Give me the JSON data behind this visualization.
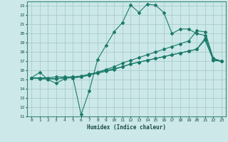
{
  "title": "",
  "xlabel": "Humidex (Indice chaleur)",
  "bg_color": "#cce8e8",
  "grid_color": "#aacccc",
  "line_color": "#1a7a6a",
  "xlim": [
    -0.5,
    23.5
  ],
  "ylim": [
    11,
    23.5
  ],
  "xticks": [
    0,
    1,
    2,
    3,
    4,
    5,
    6,
    7,
    8,
    9,
    10,
    11,
    12,
    13,
    14,
    15,
    16,
    17,
    18,
    19,
    20,
    21,
    22,
    23
  ],
  "yticks": [
    11,
    12,
    13,
    14,
    15,
    16,
    17,
    18,
    19,
    20,
    21,
    22,
    23
  ],
  "series": [
    [
      15.2,
      15.8,
      15.0,
      14.6,
      15.1,
      15.3,
      11.2,
      13.8,
      17.2,
      18.7,
      20.2,
      21.2,
      23.1,
      22.3,
      23.2,
      23.1,
      22.3,
      20.0,
      20.5,
      20.5,
      20.0,
      19.8,
      17.2,
      17.0
    ],
    [
      15.2,
      15.1,
      15.1,
      15.1,
      15.2,
      15.2,
      15.3,
      15.5,
      15.7,
      15.9,
      16.1,
      16.4,
      16.7,
      16.9,
      17.1,
      17.3,
      17.5,
      17.7,
      17.9,
      18.1,
      18.3,
      19.3,
      17.1,
      17.0
    ],
    [
      15.2,
      15.1,
      15.1,
      15.1,
      15.2,
      15.2,
      15.3,
      15.5,
      15.8,
      16.1,
      16.4,
      16.8,
      17.1,
      17.4,
      17.7,
      18.0,
      18.3,
      18.6,
      18.9,
      19.2,
      20.3,
      20.2,
      17.3,
      17.0
    ],
    [
      15.2,
      15.2,
      15.2,
      15.3,
      15.3,
      15.3,
      15.4,
      15.6,
      15.8,
      16.0,
      16.2,
      16.4,
      16.7,
      16.9,
      17.1,
      17.3,
      17.5,
      17.7,
      17.9,
      18.1,
      18.3,
      19.5,
      17.3,
      17.0
    ]
  ]
}
